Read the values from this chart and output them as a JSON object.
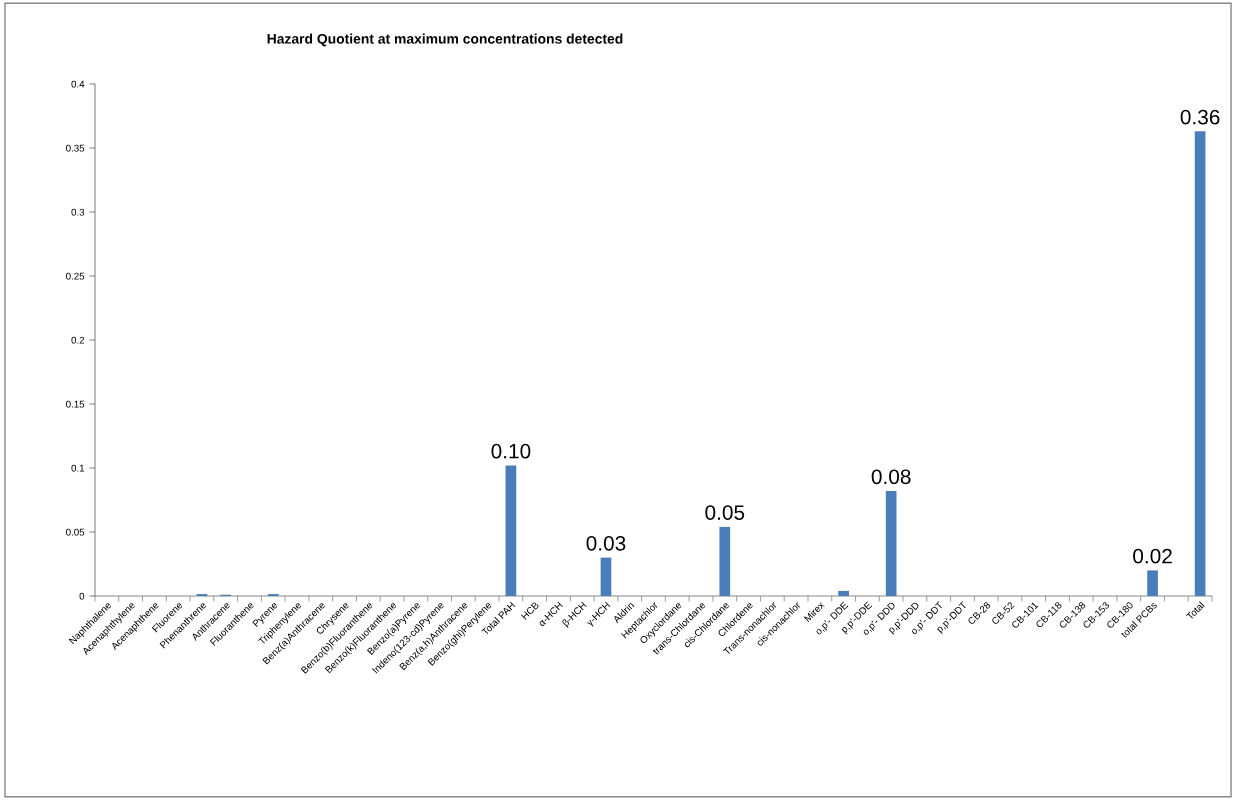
{
  "chart_data": {
    "type": "bar",
    "title": "Hazard Quotient at maximum concentrations detected",
    "categories": [
      "Naphthalene",
      "Acenaphthylene",
      "Acenaphthene",
      "Fluorene",
      "Phenanthrene",
      "Anthracene",
      "Fluoranthene",
      "Pyrene",
      "Triphenylene",
      "Benz(a)Anthracene",
      "Chrysene",
      "Benzo(b)Fluoranthene",
      "Benzo(k)Fluoranthene",
      "Benzo(a)Pyrene",
      "Indeno(123-cd)Pyrene",
      "Benz(a,h)Anthracene",
      "Benzo(ghi)Perylene",
      "Total PAH",
      "HCB",
      "α-HCH",
      "β-HCH",
      "γ-HCH",
      "Aldrin",
      "Heptachlor",
      "Oxyclordane",
      "trans-Chlordane",
      "cis-Chlordane",
      "Chlordene",
      "Trans-nonachlor",
      "cis-nonachlor",
      "Mirex",
      "o,p'- DDE",
      "p,p'-DDE",
      "o,p'- DDD",
      "p,p'-DDD",
      "o,p'- DDT",
      "p,p'-DDT",
      "CB-28",
      "CB-52",
      "CB-101",
      "CB-118",
      "CB-138",
      "CB-153",
      "CB-180",
      "total PCBs",
      null,
      "Total"
    ],
    "values": [
      0,
      0,
      0,
      0,
      0.0015,
      0.001,
      0,
      0.0015,
      0,
      0,
      0,
      0,
      0,
      0,
      0,
      0,
      0,
      0.102,
      0,
      0,
      0,
      0.03,
      0,
      0,
      0,
      0,
      0.054,
      0,
      0,
      0,
      0,
      0.004,
      0,
      0.082,
      0,
      0,
      0,
      0,
      0,
      0,
      0,
      0,
      0,
      0,
      0.02,
      null,
      0.363
    ],
    "value_labels": [
      null,
      null,
      null,
      null,
      null,
      null,
      null,
      null,
      null,
      null,
      null,
      null,
      null,
      null,
      null,
      null,
      null,
      "0.10",
      null,
      null,
      null,
      "0.03",
      null,
      null,
      null,
      null,
      "0.05",
      null,
      null,
      null,
      null,
      null,
      null,
      "0.08",
      null,
      null,
      null,
      null,
      null,
      null,
      null,
      null,
      null,
      null,
      "0.02",
      null,
      "0.36"
    ],
    "color": "#4a7ebb",
    "ylim": [
      0,
      0.4
    ],
    "yticks": [
      0,
      0.05,
      0.1,
      0.15,
      0.2,
      0.25,
      0.3,
      0.35,
      0.4
    ],
    "grid": false,
    "legend": false
  }
}
